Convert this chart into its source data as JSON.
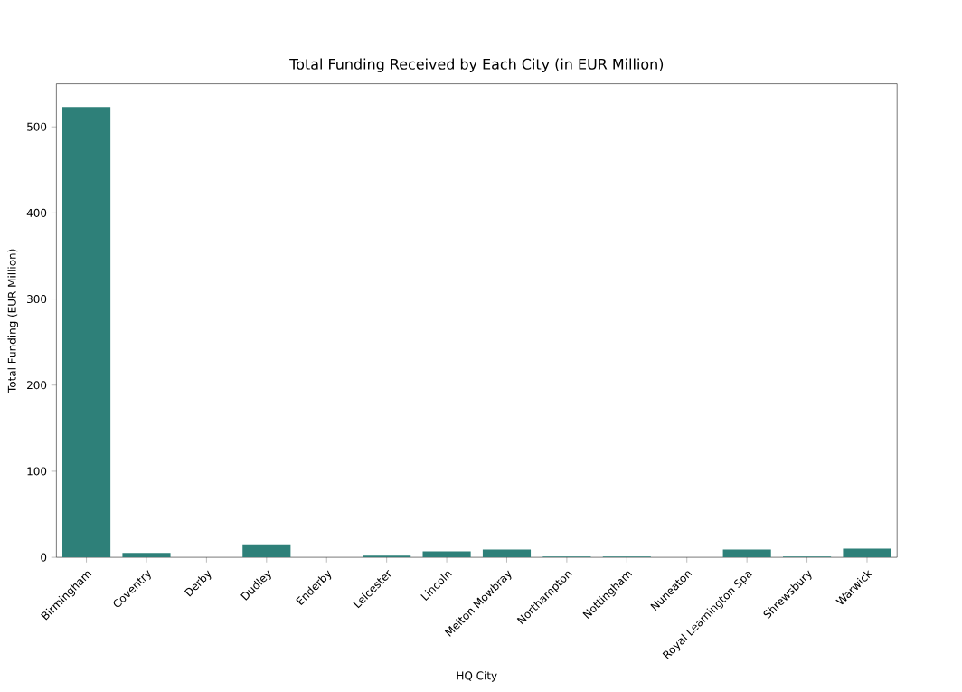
{
  "chart_data": {
    "type": "bar",
    "title": "Total Funding Received by Each City (in EUR Million)",
    "xlabel": "HQ City",
    "ylabel": "Total Funding (EUR Million)",
    "categories": [
      "Birmingham",
      "Coventry",
      "Derby",
      "Dudley",
      "Enderby",
      "Leicester",
      "Lincoln",
      "Melton Mowbray",
      "Northampton",
      "Nottingham",
      "Nuneaton",
      "Royal Leamington Spa",
      "Shrewsbury",
      "Warwick"
    ],
    "values": [
      523,
      5,
      0,
      15,
      0,
      2,
      7,
      9,
      1,
      1,
      0,
      9,
      1,
      10
    ],
    "color": "#2e8079",
    "ylim": [
      0,
      550
    ],
    "yticks": [
      0,
      100,
      200,
      300,
      400,
      500
    ],
    "grid": false
  }
}
